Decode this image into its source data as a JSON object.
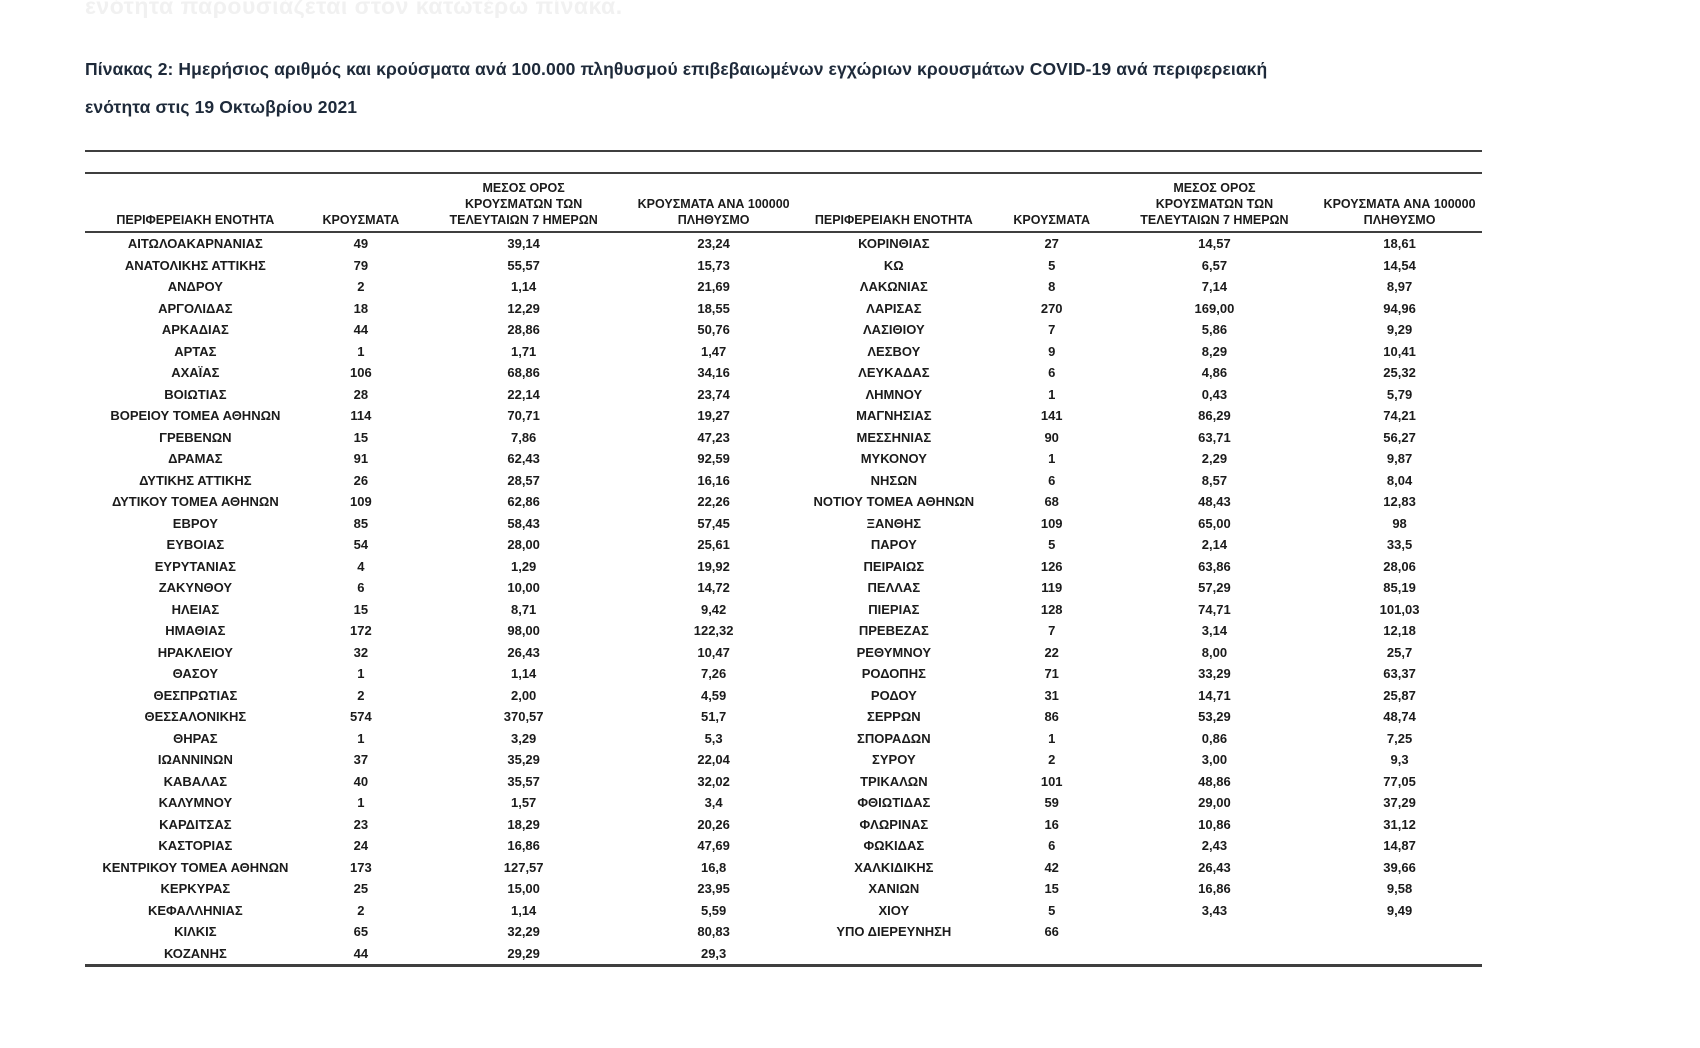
{
  "page": {
    "faded_top_text": "ενότητα παρουσιάζεται στον κατωτέρω πίνακα.",
    "title_line1": "Πίνακας 2:  Ημερήσιος αριθμός και κρούσματα ανά 100.000 πληθυσμού επιβεβαιωμένων εγχώριων κρουσμάτων COVID-19 ανά περιφερειακή",
    "title_line2": "ενότητα στις 19 Οκτωβρίου 2021"
  },
  "colors": {
    "title": "#1e2a3a",
    "text": "#1b1b1b",
    "rules": "#3f3f3f",
    "faded_text": "#f1f1f1"
  },
  "table": {
    "columns": [
      "ΠΕΡΙΦΕΡΕΙΑΚΗ ΕΝΟΤΗΤΑ",
      "ΚΡΟΥΣΜΑΤΑ",
      "ΜΕΣΟΣ ΟΡΟΣ\nΚΡΟΥΣΜΑΤΩΝ ΤΩΝ\nΤΕΛΕΥΤΑΙΩΝ 7 ΗΜΕΡΩΝ",
      "ΚΡΟΥΣΜΑΤΑ ΑΝΑ 100000\nΠΛΗΘΥΣΜΟ"
    ],
    "left_rows": [
      [
        "ΑΙΤΩΛΟΑΚΑΡΝΑΝΙΑΣ",
        "49",
        "39,14",
        "23,24"
      ],
      [
        "ΑΝΑΤΟΛΙΚΗΣ ΑΤΤΙΚΗΣ",
        "79",
        "55,57",
        "15,73"
      ],
      [
        "ΑΝΔΡΟΥ",
        "2",
        "1,14",
        "21,69"
      ],
      [
        "ΑΡΓΟΛΙΔΑΣ",
        "18",
        "12,29",
        "18,55"
      ],
      [
        "ΑΡΚΑΔΙΑΣ",
        "44",
        "28,86",
        "50,76"
      ],
      [
        "ΑΡΤΑΣ",
        "1",
        "1,71",
        "1,47"
      ],
      [
        "ΑΧΑΪΑΣ",
        "106",
        "68,86",
        "34,16"
      ],
      [
        "ΒΟΙΩΤΙΑΣ",
        "28",
        "22,14",
        "23,74"
      ],
      [
        "ΒΟΡΕΙΟΥ ΤΟΜΕΑ ΑΘΗΝΩΝ",
        "114",
        "70,71",
        "19,27"
      ],
      [
        "ΓΡΕΒΕΝΩΝ",
        "15",
        "7,86",
        "47,23"
      ],
      [
        "ΔΡΑΜΑΣ",
        "91",
        "62,43",
        "92,59"
      ],
      [
        "ΔΥΤΙΚΗΣ ΑΤΤΙΚΗΣ",
        "26",
        "28,57",
        "16,16"
      ],
      [
        "ΔΥΤΙΚΟΥ ΤΟΜΕΑ ΑΘΗΝΩΝ",
        "109",
        "62,86",
        "22,26"
      ],
      [
        "ΕΒΡΟΥ",
        "85",
        "58,43",
        "57,45"
      ],
      [
        "ΕΥΒΟΙΑΣ",
        "54",
        "28,00",
        "25,61"
      ],
      [
        "ΕΥΡΥΤΑΝΙΑΣ",
        "4",
        "1,29",
        "19,92"
      ],
      [
        "ΖΑΚΥΝΘΟΥ",
        "6",
        "10,00",
        "14,72"
      ],
      [
        "ΗΛΕΙΑΣ",
        "15",
        "8,71",
        "9,42"
      ],
      [
        "ΗΜΑΘΙΑΣ",
        "172",
        "98,00",
        "122,32"
      ],
      [
        "ΗΡΑΚΛΕΙΟΥ",
        "32",
        "26,43",
        "10,47"
      ],
      [
        "ΘΑΣΟΥ",
        "1",
        "1,14",
        "7,26"
      ],
      [
        "ΘΕΣΠΡΩΤΙΑΣ",
        "2",
        "2,00",
        "4,59"
      ],
      [
        "ΘΕΣΣΑΛΟΝΙΚΗΣ",
        "574",
        "370,57",
        "51,7"
      ],
      [
        "ΘΗΡΑΣ",
        "1",
        "3,29",
        "5,3"
      ],
      [
        "ΙΩΑΝΝΙΝΩΝ",
        "37",
        "35,29",
        "22,04"
      ],
      [
        "ΚΑΒΑΛΑΣ",
        "40",
        "35,57",
        "32,02"
      ],
      [
        "ΚΑΛΥΜΝΟΥ",
        "1",
        "1,57",
        "3,4"
      ],
      [
        "ΚΑΡΔΙΤΣΑΣ",
        "23",
        "18,29",
        "20,26"
      ],
      [
        "ΚΑΣΤΟΡΙΑΣ",
        "24",
        "16,86",
        "47,69"
      ],
      [
        "ΚΕΝΤΡΙΚΟΥ ΤΟΜΕΑ ΑΘΗΝΩΝ",
        "173",
        "127,57",
        "16,8"
      ],
      [
        "ΚΕΡΚΥΡΑΣ",
        "25",
        "15,00",
        "23,95"
      ],
      [
        "ΚΕΦΑΛΛΗΝΙΑΣ",
        "2",
        "1,14",
        "5,59"
      ],
      [
        "ΚΙΛΚΙΣ",
        "65",
        "32,29",
        "80,83"
      ],
      [
        "ΚΟΖΑΝΗΣ",
        "44",
        "29,29",
        "29,3"
      ]
    ],
    "right_rows": [
      [
        "ΚΟΡΙΝΘΙΑΣ",
        "27",
        "14,57",
        "18,61"
      ],
      [
        "ΚΩ",
        "5",
        "6,57",
        "14,54"
      ],
      [
        "ΛΑΚΩΝΙΑΣ",
        "8",
        "7,14",
        "8,97"
      ],
      [
        "ΛΑΡΙΣΑΣ",
        "270",
        "169,00",
        "94,96"
      ],
      [
        "ΛΑΣΙΘΙΟΥ",
        "7",
        "5,86",
        "9,29"
      ],
      [
        "ΛΕΣΒΟΥ",
        "9",
        "8,29",
        "10,41"
      ],
      [
        "ΛΕΥΚΑΔΑΣ",
        "6",
        "4,86",
        "25,32"
      ],
      [
        "ΛΗΜΝΟΥ",
        "1",
        "0,43",
        "5,79"
      ],
      [
        "ΜΑΓΝΗΣΙΑΣ",
        "141",
        "86,29",
        "74,21"
      ],
      [
        "ΜΕΣΣΗΝΙΑΣ",
        "90",
        "63,71",
        "56,27"
      ],
      [
        "ΜΥΚΟΝΟΥ",
        "1",
        "2,29",
        "9,87"
      ],
      [
        "ΝΗΣΩΝ",
        "6",
        "8,57",
        "8,04"
      ],
      [
        "ΝΟΤΙΟΥ ΤΟΜΕΑ ΑΘΗΝΩΝ",
        "68",
        "48,43",
        "12,83"
      ],
      [
        "ΞΑΝΘΗΣ",
        "109",
        "65,00",
        "98"
      ],
      [
        "ΠΑΡΟΥ",
        "5",
        "2,14",
        "33,5"
      ],
      [
        "ΠΕΙΡΑΙΩΣ",
        "126",
        "63,86",
        "28,06"
      ],
      [
        "ΠΕΛΛΑΣ",
        "119",
        "57,29",
        "85,19"
      ],
      [
        "ΠΙΕΡΙΑΣ",
        "128",
        "74,71",
        "101,03"
      ],
      [
        "ΠΡΕΒΕΖΑΣ",
        "7",
        "3,14",
        "12,18"
      ],
      [
        "ΡΕΘΥΜΝΟΥ",
        "22",
        "8,00",
        "25,7"
      ],
      [
        "ΡΟΔΟΠΗΣ",
        "71",
        "33,29",
        "63,37"
      ],
      [
        "ΡΟΔΟΥ",
        "31",
        "14,71",
        "25,87"
      ],
      [
        "ΣΕΡΡΩΝ",
        "86",
        "53,29",
        "48,74"
      ],
      [
        "ΣΠΟΡΑΔΩΝ",
        "1",
        "0,86",
        "7,25"
      ],
      [
        "ΣΥΡΟΥ",
        "2",
        "3,00",
        "9,3"
      ],
      [
        "ΤΡΙΚΑΛΩΝ",
        "101",
        "48,86",
        "77,05"
      ],
      [
        "ΦΘΙΩΤΙΔΑΣ",
        "59",
        "29,00",
        "37,29"
      ],
      [
        "ΦΛΩΡΙΝΑΣ",
        "16",
        "10,86",
        "31,12"
      ],
      [
        "ΦΩΚΙΔΑΣ",
        "6",
        "2,43",
        "14,87"
      ],
      [
        "ΧΑΛΚΙΔΙΚΗΣ",
        "42",
        "26,43",
        "39,66"
      ],
      [
        "ΧΑΝΙΩΝ",
        "15",
        "16,86",
        "9,58"
      ],
      [
        "ΧΙΟΥ",
        "5",
        "3,43",
        "9,49"
      ],
      [
        "ΥΠΟ ΔΙΕΡΕΥΝΗΣΗ",
        "66",
        "",
        ""
      ]
    ]
  }
}
